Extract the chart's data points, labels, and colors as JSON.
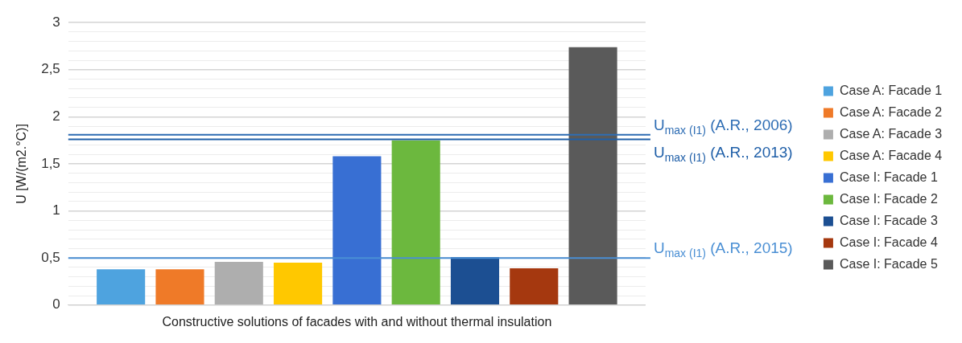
{
  "chart_data": {
    "type": "bar",
    "xlabel": "Constructive solutions of facades with and without thermal insulation",
    "ylabel": "U [W/(m2.°C)]",
    "categories": [
      null
    ],
    "series": [
      {
        "name": "Case A: Facade 1",
        "color": "#4ea3df",
        "values": [
          0.38
        ]
      },
      {
        "name": "Case A: Facade 2",
        "color": "#ef7a28",
        "values": [
          0.38
        ]
      },
      {
        "name": "Case A: Facade 3",
        "color": "#aeaeae",
        "values": [
          0.46
        ]
      },
      {
        "name": "Case A: Facade 4",
        "color": "#ffc800",
        "values": [
          0.45
        ]
      },
      {
        "name": "Case I: Facade 1",
        "color": "#386fd3",
        "values": [
          1.58
        ]
      },
      {
        "name": "Case I: Facade 2",
        "color": "#6cb83e",
        "values": [
          1.75
        ]
      },
      {
        "name": "Case I: Facade 3",
        "color": "#1c4f92",
        "values": [
          0.51
        ]
      },
      {
        "name": "Case I: Facade 4",
        "color": "#a5380f",
        "values": [
          0.39
        ]
      },
      {
        "name": "Case I: Facade 5",
        "color": "#5a5a5a",
        "values": [
          2.74
        ]
      }
    ],
    "ylim": [
      0,
      3
    ],
    "yticks": [
      {
        "value": 0,
        "label": "0"
      },
      {
        "value": 0.1,
        "label": null
      },
      {
        "value": 0.2,
        "label": null
      },
      {
        "value": 0.3,
        "label": null
      },
      {
        "value": 0.4,
        "label": null
      },
      {
        "value": 0.5,
        "label": "0,5"
      },
      {
        "value": 0.6,
        "label": null
      },
      {
        "value": 0.7,
        "label": null
      },
      {
        "value": 0.8,
        "label": null
      },
      {
        "value": 0.9,
        "label": null
      },
      {
        "value": 1,
        "label": "1"
      },
      {
        "value": 1.1,
        "label": null
      },
      {
        "value": 1.2,
        "label": null
      },
      {
        "value": 1.3,
        "label": null
      },
      {
        "value": 1.4,
        "label": null
      },
      {
        "value": 1.5,
        "label": "1,5"
      },
      {
        "value": 1.6,
        "label": null
      },
      {
        "value": 1.7,
        "label": null
      },
      {
        "value": 1.8,
        "label": null
      },
      {
        "value": 1.9,
        "label": null
      },
      {
        "value": 2,
        "label": "2"
      },
      {
        "value": 2.1,
        "label": null
      },
      {
        "value": 2.2,
        "label": null
      },
      {
        "value": 2.3,
        "label": null
      },
      {
        "value": 2.4,
        "label": null
      },
      {
        "value": 2.5,
        "label": "2,5"
      },
      {
        "value": 2.6,
        "label": null
      },
      {
        "value": 2.7,
        "label": null
      },
      {
        "value": 2.8,
        "label": null
      },
      {
        "value": 2.9,
        "label": null
      },
      {
        "value": 3,
        "label": "3"
      }
    ],
    "ref_lines": [
      {
        "axis": "y",
        "value": 1.81,
        "label": "U$_{max (I1)}$ (A.R., 2006)",
        "color": "#2e6db4"
      },
      {
        "axis": "y",
        "value": 1.76,
        "label": "U$_{max (I1)}$ (A.R., 2013)",
        "color": "#1f5fa8"
      },
      {
        "axis": "y",
        "value": 0.5,
        "label": "U$_{max (I1)}$ (A.R., 2015)",
        "color": "#4a8fd4"
      }
    ],
    "grid": "y",
    "legend": "right"
  }
}
